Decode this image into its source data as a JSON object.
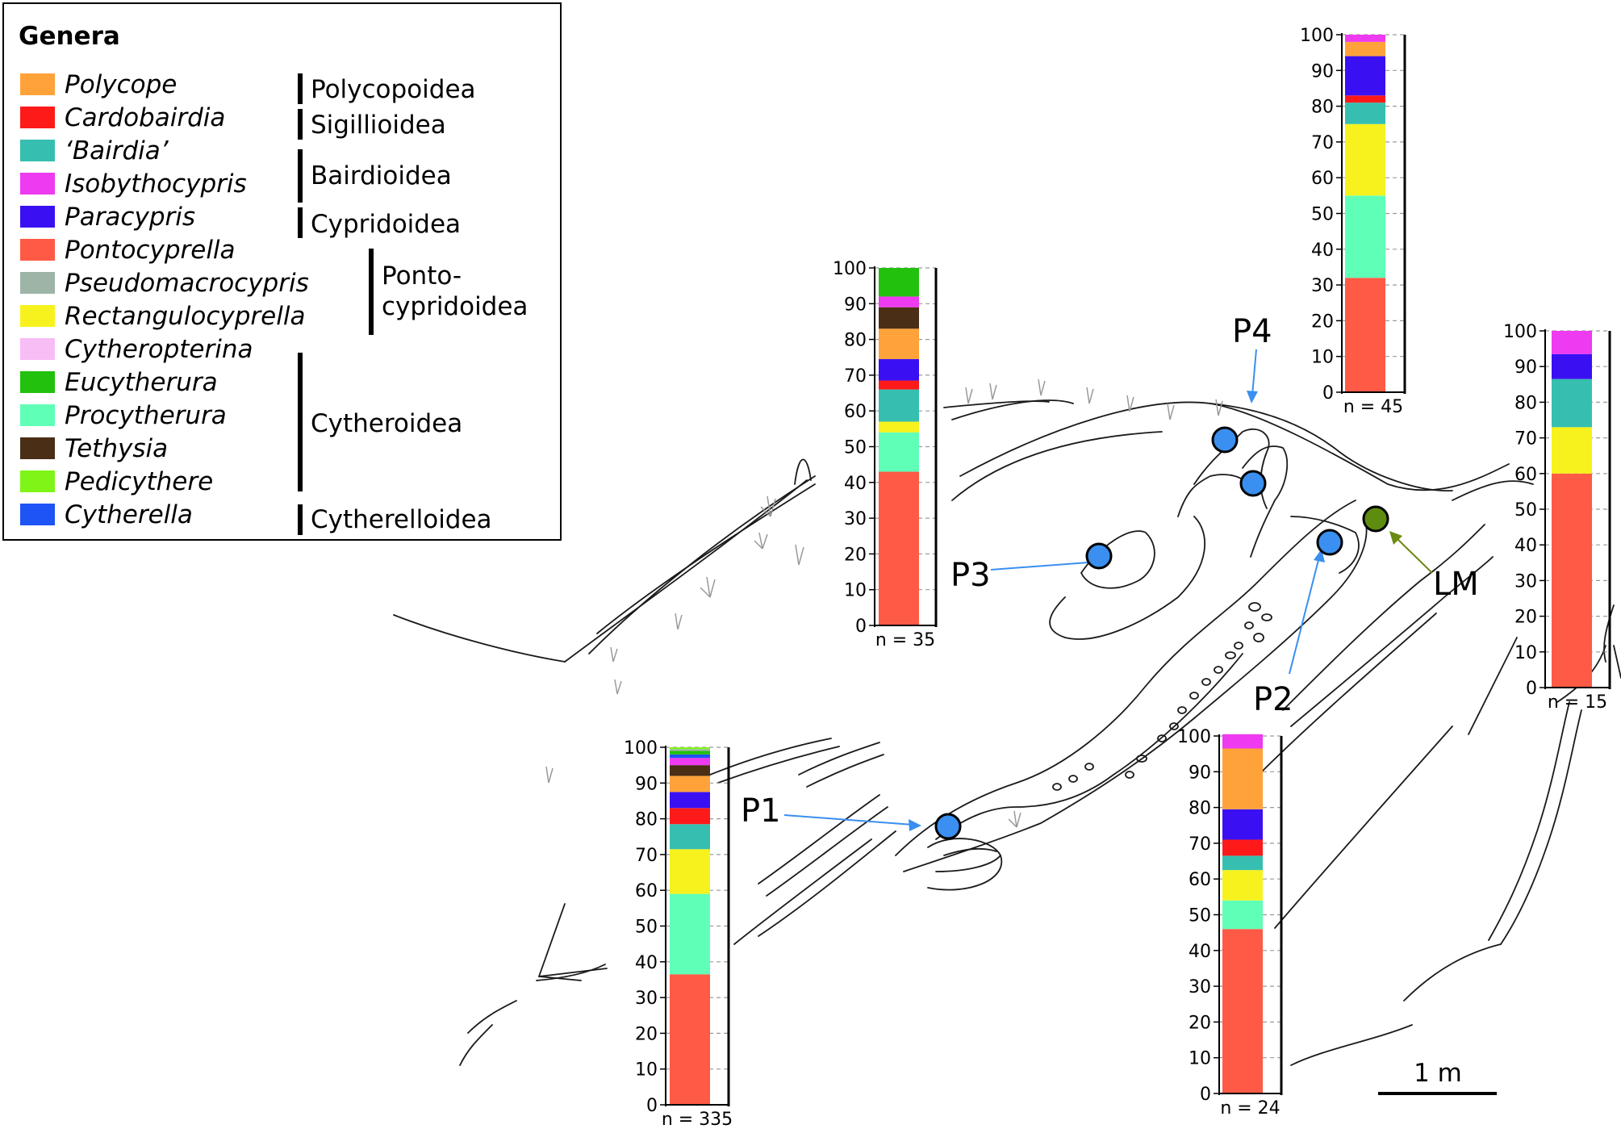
{
  "legend": {
    "title": "Genera",
    "genera": [
      {
        "name": "Polycope",
        "color": "#FFA23A"
      },
      {
        "name": "Cardobairdia",
        "color": "#FF1A1A"
      },
      {
        "name": "‘Bairdia’",
        "color": "#36BFB0"
      },
      {
        "name": "Isobythocypris",
        "color": "#EE3AF0"
      },
      {
        "name": "Paracypris",
        "color": "#3A10F2"
      },
      {
        "name": "Pontocyprella",
        "color": "#FF5A45"
      },
      {
        "name": "Pseudomacrocypris",
        "color": "#9DB4A6"
      },
      {
        "name": "Rectangulocyprella",
        "color": "#F7F21E"
      },
      {
        "name": "Cytheropterina",
        "color": "#F8BDF5"
      },
      {
        "name": "Eucytherura",
        "color": "#22C10E"
      },
      {
        "name": "Procytherura",
        "color": "#60FFB8"
      },
      {
        "name": "Tethysia",
        "color": "#4A2E16"
      },
      {
        "name": "Pedicythere",
        "color": "#7EF516"
      },
      {
        "name": "Cytherella",
        "color": "#1E54F5"
      }
    ],
    "superfamilies": [
      {
        "label": "Polycopoidea"
      },
      {
        "label": "Sigillioidea"
      },
      {
        "label": "Bairdioidea"
      },
      {
        "label": "Cypridoidea"
      },
      {
        "label": "Ponto-\ncypridoidea"
      },
      {
        "label": "Cytheroidea"
      },
      {
        "label": "Cytherelloidea"
      }
    ]
  },
  "site_labels": {
    "P1": "P1",
    "P2": "P2",
    "P3": "P3",
    "P4": "P4",
    "LM": "LM"
  },
  "scale_bar": "1 m",
  "colors": {
    "sample_dot": "#3A8FF0",
    "lm_dot": "#5E8C0E",
    "arrow_blue": "#3A8FF0",
    "arrow_olive": "#6B8A12"
  },
  "chart_data": [
    {
      "type": "bar",
      "site": "P1",
      "n_label": "n = 335",
      "ylim": [
        0,
        100
      ],
      "yticks": [
        0,
        10,
        20,
        30,
        40,
        50,
        60,
        70,
        80,
        90,
        100
      ],
      "stacks": [
        {
          "genus": "Pontocyprella",
          "value": 36.5
        },
        {
          "genus": "Procytherura",
          "value": 22.5
        },
        {
          "genus": "Rectangulocyprella",
          "value": 12.5
        },
        {
          "genus": "‘Bairdia’",
          "value": 7
        },
        {
          "genus": "Cardobairdia",
          "value": 4.5
        },
        {
          "genus": "Paracypris",
          "value": 4.5
        },
        {
          "genus": "Polycope",
          "value": 4.5
        },
        {
          "genus": "Tethysia",
          "value": 3
        },
        {
          "genus": "Isobythocypris",
          "value": 2
        },
        {
          "genus": "Cytherella",
          "value": 1
        },
        {
          "genus": "Eucytherura",
          "value": 1
        },
        {
          "genus": "Pseudomacrocypris",
          "value": 0.5
        },
        {
          "genus": "Pedicythere",
          "value": 0.5
        }
      ]
    },
    {
      "type": "bar",
      "site": "P3",
      "n_label": "n = 35",
      "ylim": [
        0,
        100
      ],
      "yticks": [
        0,
        10,
        20,
        30,
        40,
        50,
        60,
        70,
        80,
        90,
        100
      ],
      "stacks": [
        {
          "genus": "Pontocyprella",
          "value": 43
        },
        {
          "genus": "Procytherura",
          "value": 11
        },
        {
          "genus": "Rectangulocyprella",
          "value": 3
        },
        {
          "genus": "‘Bairdia’",
          "value": 9
        },
        {
          "genus": "Cardobairdia",
          "value": 2.5
        },
        {
          "genus": "Paracypris",
          "value": 6
        },
        {
          "genus": "Polycope",
          "value": 8.5
        },
        {
          "genus": "Tethysia",
          "value": 6
        },
        {
          "genus": "Isobythocypris",
          "value": 3
        },
        {
          "genus": "Eucytherura",
          "value": 8
        }
      ]
    },
    {
      "type": "bar",
      "site": "P4",
      "n_label": "n = 45",
      "ylim": [
        0,
        100
      ],
      "yticks": [
        0,
        10,
        20,
        30,
        40,
        50,
        60,
        70,
        80,
        90,
        100
      ],
      "stacks": [
        {
          "genus": "Pontocyprella",
          "value": 32
        },
        {
          "genus": "Procytherura",
          "value": 23
        },
        {
          "genus": "Rectangulocyprella",
          "value": 20
        },
        {
          "genus": "‘Bairdia’",
          "value": 6
        },
        {
          "genus": "Cardobairdia",
          "value": 2
        },
        {
          "genus": "Paracypris",
          "value": 11
        },
        {
          "genus": "Polycope",
          "value": 4
        },
        {
          "genus": "Isobythocypris",
          "value": 2
        }
      ]
    },
    {
      "type": "bar",
      "site": "P2",
      "n_label": "n = 24",
      "ylim": [
        0,
        100
      ],
      "yticks": [
        0,
        10,
        20,
        30,
        40,
        50,
        60,
        70,
        80,
        90,
        100
      ],
      "stacks": [
        {
          "genus": "Pontocyprella",
          "value": 46
        },
        {
          "genus": "Procytherura",
          "value": 8
        },
        {
          "genus": "Rectangulocyprella",
          "value": 8.5
        },
        {
          "genus": "‘Bairdia’",
          "value": 4
        },
        {
          "genus": "Cardobairdia",
          "value": 4.5
        },
        {
          "genus": "Paracypris",
          "value": 8.5
        },
        {
          "genus": "Polycope",
          "value": 17
        },
        {
          "genus": "Isobythocypris",
          "value": 4
        }
      ]
    },
    {
      "type": "bar",
      "site": "LM",
      "n_label": "n = 15",
      "ylim": [
        0,
        100
      ],
      "yticks": [
        0,
        10,
        20,
        30,
        40,
        50,
        60,
        70,
        80,
        90,
        100
      ],
      "stacks": [
        {
          "genus": "Pontocyprella",
          "value": 60
        },
        {
          "genus": "Rectangulocyprella",
          "value": 13
        },
        {
          "genus": "‘Bairdia’",
          "value": 13.5
        },
        {
          "genus": "Paracypris",
          "value": 7
        },
        {
          "genus": "Isobythocypris",
          "value": 6.5
        }
      ]
    }
  ]
}
